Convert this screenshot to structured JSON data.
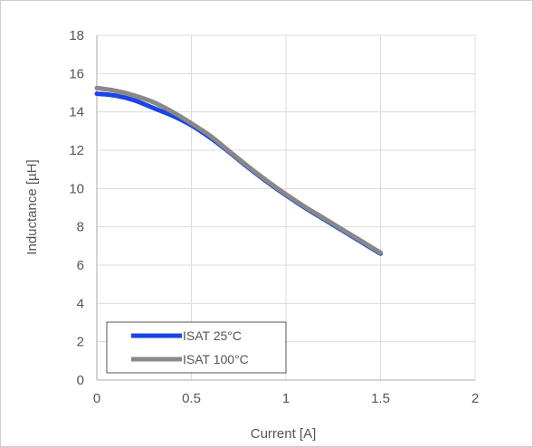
{
  "chart_data": {
    "type": "line",
    "title": "",
    "xlabel": "Current [A]",
    "ylabel": "Inductance [µH]",
    "xlim": [
      0,
      2
    ],
    "ylim": [
      0,
      18
    ],
    "xticks": [
      0,
      0.5,
      1,
      1.5,
      2
    ],
    "xtick_labels": [
      "0",
      "0.5",
      "1",
      "1.5",
      "2"
    ],
    "yticks": [
      0,
      2,
      4,
      6,
      8,
      10,
      12,
      14,
      16,
      18
    ],
    "ytick_labels": [
      "0",
      "2",
      "4",
      "6",
      "8",
      "10",
      "12",
      "14",
      "16",
      "18"
    ],
    "grid": true,
    "legend_position": "bottom-left",
    "series": [
      {
        "name": "ISAT 25°C",
        "color": "#1a44e6",
        "x": [
          0,
          0.1,
          0.2,
          0.3,
          0.4,
          0.5,
          0.6,
          0.7,
          0.8,
          0.9,
          1.0,
          1.1,
          1.2,
          1.3,
          1.4,
          1.5
        ],
        "y": [
          14.95,
          14.85,
          14.6,
          14.2,
          13.8,
          13.3,
          12.65,
          11.9,
          11.1,
          10.35,
          9.65,
          9.0,
          8.4,
          7.8,
          7.2,
          6.6
        ]
      },
      {
        "name": "ISAT 100°C",
        "color": "#888888",
        "x": [
          0,
          0.1,
          0.2,
          0.3,
          0.4,
          0.5,
          0.6,
          0.7,
          0.8,
          0.9,
          1.0,
          1.1,
          1.2,
          1.3,
          1.4,
          1.5
        ],
        "y": [
          15.25,
          15.1,
          14.85,
          14.5,
          14.0,
          13.4,
          12.75,
          11.95,
          11.15,
          10.4,
          9.7,
          9.05,
          8.45,
          7.85,
          7.25,
          6.65
        ]
      }
    ]
  }
}
